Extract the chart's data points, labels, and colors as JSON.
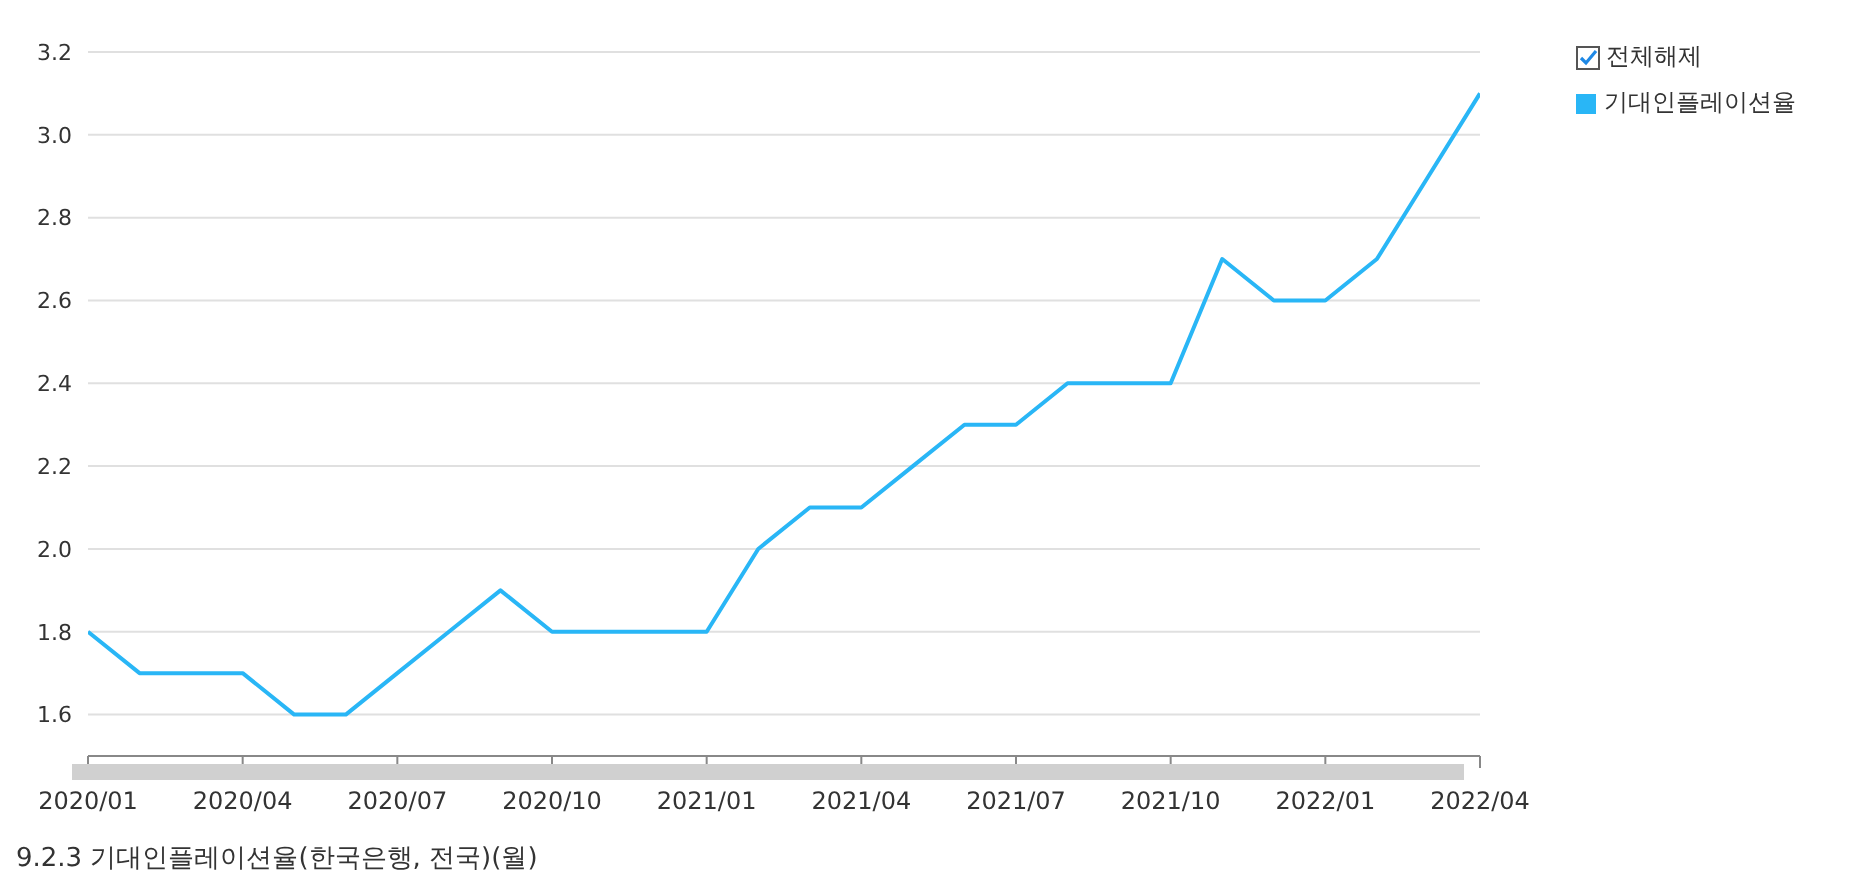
{
  "chart_data": {
    "type": "line",
    "title": "9.2.3 기대인플레이션율(한국은행, 전국)(월)",
    "annotations": [
      "전체해제"
    ],
    "x": [
      "2020-01",
      "2020-02",
      "2020-03",
      "2020-04",
      "2020-05",
      "2020-06",
      "2020-07",
      "2020-08",
      "2020-09",
      "2020-10",
      "2020-11",
      "2020-12",
      "2021-01",
      "2021-02",
      "2021-03",
      "2021-04",
      "2021-05",
      "2021-06",
      "2021-07",
      "2021-08",
      "2021-09",
      "2021-10",
      "2021-11",
      "2021-12",
      "2022-01",
      "2022-02",
      "2022-03",
      "2022-04"
    ],
    "series": [
      {
        "name": "기대인플레이션율",
        "color": "#29b6f6",
        "values": [
          1.8,
          1.7,
          1.7,
          1.7,
          1.6,
          1.6,
          1.7,
          1.8,
          1.9,
          1.8,
          1.8,
          1.8,
          1.8,
          2.0,
          2.1,
          2.1,
          2.2,
          2.3,
          2.3,
          2.4,
          2.4,
          2.4,
          2.7,
          2.6,
          2.6,
          2.7,
          2.9,
          3.1
        ]
      }
    ],
    "xlim": [
      "2020-01",
      "2022-04"
    ],
    "xticks": [
      {
        "value": "2020-01",
        "label": "2020/01"
      },
      {
        "value": "2020-04",
        "label": "2020/04"
      },
      {
        "value": "2020-07",
        "label": "2020/07"
      },
      {
        "value": "2020-10",
        "label": "2020/10"
      },
      {
        "value": "2021-01",
        "label": "2021/01"
      },
      {
        "value": "2021-04",
        "label": "2021/04"
      },
      {
        "value": "2021-07",
        "label": "2021/07"
      },
      {
        "value": "2021-10",
        "label": "2021/10"
      },
      {
        "value": "2022-01",
        "label": "2022/01"
      },
      {
        "value": "2022-04",
        "label": "2022/04"
      }
    ],
    "ylim": [
      1.5,
      3.2
    ],
    "yticks": [
      1.6,
      1.8,
      {
        "value": 2,
        "label": "2.0"
      },
      2.2,
      2.4,
      2.6,
      2.8,
      {
        "value": 3,
        "label": "3.0"
      },
      3.2
    ],
    "grid": "y",
    "legend": "top right",
    "marker": "none",
    "line_style": "solid"
  }
}
